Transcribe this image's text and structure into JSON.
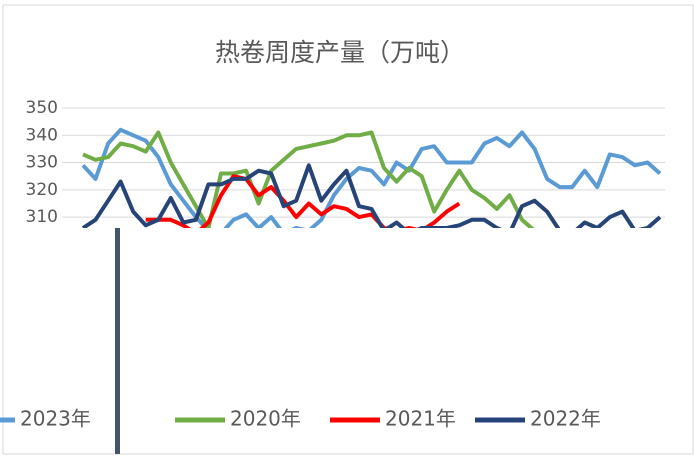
{
  "chart_data": {
    "type": "line",
    "title": "热卷周度产量（万吨）",
    "categories": [
      null,
      null,
      null,
      null,
      null,
      null,
      null,
      null,
      null,
      null,
      null,
      null,
      null,
      null,
      null,
      null,
      null,
      null,
      null,
      null,
      null,
      null,
      null,
      null,
      null,
      null,
      null,
      null,
      null,
      null,
      null,
      null,
      null,
      null,
      null,
      null,
      null,
      null,
      null,
      null,
      null,
      null,
      null,
      null,
      null,
      null,
      null
    ],
    "ylim": [
      306,
      350
    ],
    "yticks": [
      310,
      320,
      330,
      340,
      350
    ],
    "grid": true,
    "series": [
      {
        "name": "2023年",
        "color": "#5b9bd5",
        "values": [
          329,
          324,
          337,
          342,
          340,
          338,
          332,
          322,
          316,
          310,
          305,
          304,
          309,
          311,
          306,
          310,
          304,
          306,
          305,
          309,
          318,
          324,
          328,
          327,
          322,
          330,
          327,
          335,
          336,
          330,
          330,
          330,
          337,
          339,
          336,
          341,
          335,
          324,
          321,
          321,
          327,
          321,
          333,
          332,
          329,
          330,
          326
        ]
      },
      {
        "name": "2020年",
        "color": "#70ad47",
        "values": [
          333,
          331,
          332,
          337,
          336,
          334,
          341,
          330,
          322,
          314,
          306,
          326,
          326,
          327,
          315,
          327,
          331,
          335,
          336,
          337,
          338,
          340,
          340,
          341,
          328,
          323,
          328,
          325,
          312,
          320,
          327,
          320,
          317,
          313,
          318,
          309,
          305,
          null,
          null,
          null,
          null,
          null,
          null,
          null,
          null,
          null,
          null
        ]
      },
      {
        "name": "2021年",
        "color": "#ff0000",
        "values": [
          null,
          null,
          null,
          null,
          null,
          309,
          309,
          309,
          307,
          304,
          308,
          318,
          325,
          324,
          318,
          321,
          316,
          310,
          315,
          311,
          314,
          313,
          310,
          311,
          306,
          305,
          306,
          305,
          308,
          312,
          315,
          null,
          null,
          null,
          null,
          null,
          null,
          null,
          null,
          null,
          null,
          null,
          null,
          null,
          null,
          null,
          null
        ]
      },
      {
        "name": "2022年",
        "color": "#264478",
        "values": [
          306,
          309,
          316,
          323,
          312,
          307,
          309,
          317,
          308,
          309,
          322,
          322,
          324,
          324,
          327,
          326,
          314,
          316,
          329,
          316,
          322,
          327,
          314,
          313,
          305,
          308,
          304,
          306,
          306,
          306,
          307,
          309,
          309,
          306,
          304,
          314,
          316,
          312,
          305,
          304,
          308,
          306,
          310,
          312,
          305,
          306,
          310
        ]
      }
    ]
  }
}
